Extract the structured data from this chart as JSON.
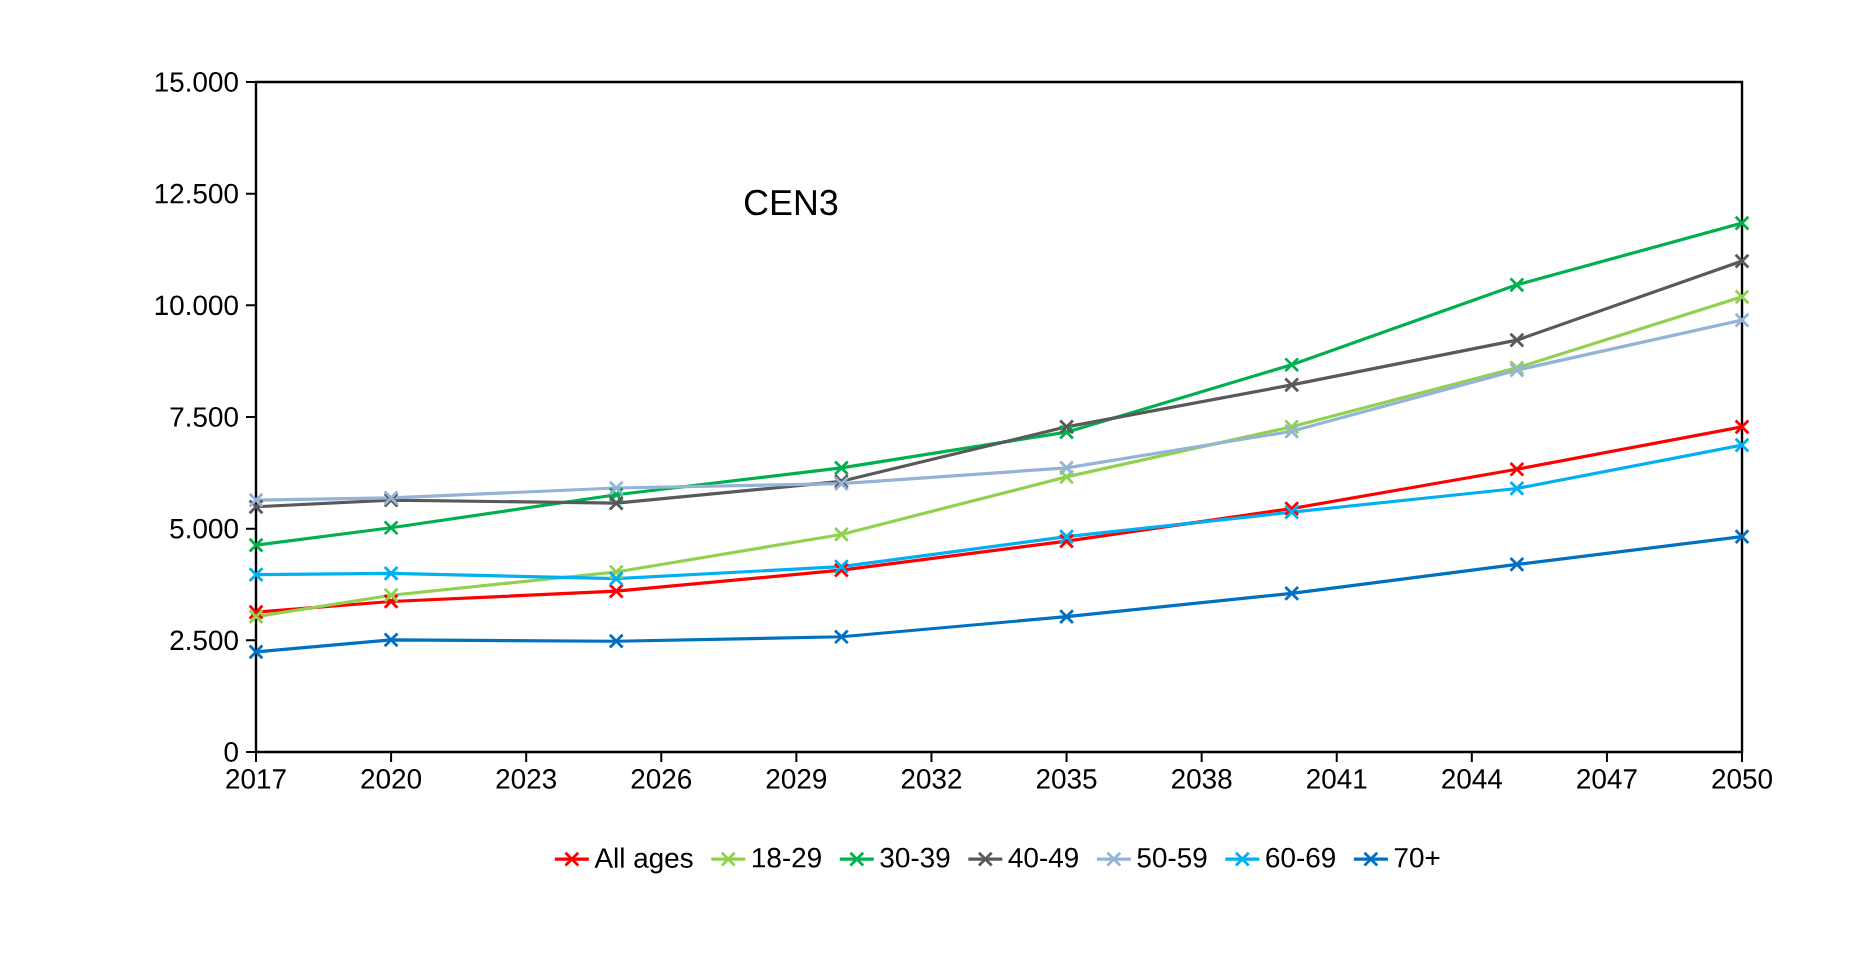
{
  "chart_data": {
    "type": "line",
    "annotations": [
      "CEN3"
    ],
    "x": [
      2017,
      2020,
      2025,
      2030,
      2035,
      2040,
      2045,
      2050
    ],
    "series": [
      {
        "name": "All ages",
        "color": "#ff0000",
        "values": [
          3130,
          3370,
          3600,
          4070,
          4720,
          5450,
          6330,
          7280
        ]
      },
      {
        "name": "18-29",
        "color": "#92d050",
        "values": [
          3030,
          3510,
          4030,
          4870,
          6160,
          7280,
          8600,
          10190
        ]
      },
      {
        "name": "30-39",
        "color": "#00b050",
        "values": [
          4630,
          5020,
          5760,
          6360,
          7160,
          8670,
          10460,
          11840
        ]
      },
      {
        "name": "40-49",
        "color": "#595959",
        "values": [
          5490,
          5640,
          5570,
          6060,
          7280,
          8220,
          9220,
          10990
        ]
      },
      {
        "name": "50-59",
        "color": "#95b3d7",
        "values": [
          5640,
          5690,
          5910,
          6010,
          6360,
          7180,
          8550,
          9670
        ]
      },
      {
        "name": "60-69",
        "color": "#00b0f0",
        "values": [
          3970,
          4000,
          3880,
          4150,
          4820,
          5370,
          5900,
          6870
        ]
      },
      {
        "name": "70+",
        "color": "#0070c0",
        "values": [
          2240,
          2510,
          2480,
          2580,
          3030,
          3550,
          4200,
          4820
        ]
      }
    ],
    "xlim": [
      2017,
      2050
    ],
    "xticks": [
      2017,
      2020,
      2023,
      2026,
      2029,
      2032,
      2035,
      2038,
      2041,
      2044,
      2047,
      2050
    ],
    "ylim": [
      0,
      15000
    ],
    "yticks": [
      {
        "value": 0,
        "label": "0"
      },
      {
        "value": 2500,
        "label": "2.500"
      },
      {
        "value": 5000,
        "label": "5.000"
      },
      {
        "value": 7500,
        "label": "7.500"
      },
      {
        "value": 10000,
        "label": "10.000"
      },
      {
        "value": 12500,
        "label": "12.500"
      },
      {
        "value": 15000,
        "label": "15.000"
      }
    ],
    "legend": "bottom",
    "marker": "cross",
    "line_style": "solid"
  }
}
